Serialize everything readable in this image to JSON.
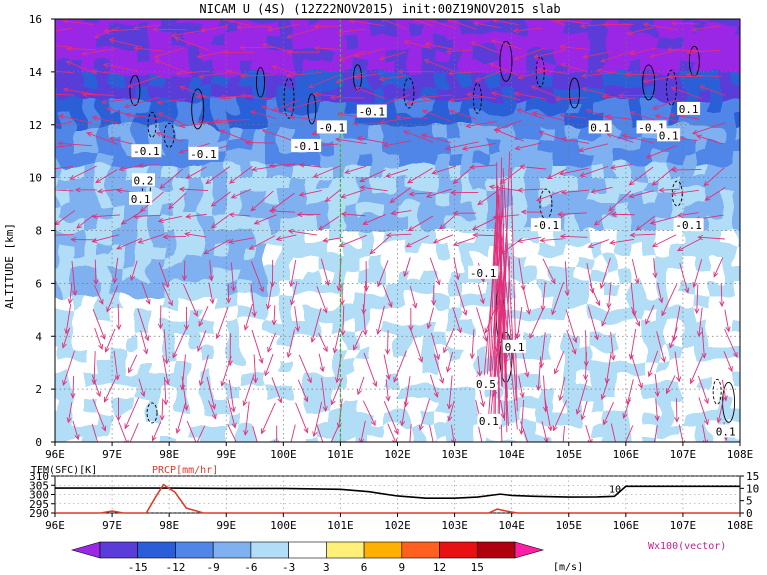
{
  "title": "NICAM U (4S) (12Z22NOV2015) init:00Z19NOV2015 slab",
  "units_label": "[m/s]",
  "vector_label": "Wx100(vector)",
  "colors": {
    "vector": "#e0307a",
    "marker_line": "#33bb33",
    "tem_line": "#000000",
    "prcp_line": "#e03a2a",
    "shades": [
      "#9a28e6",
      "#5a3cd8",
      "#2a5ed8",
      "#4f86e8",
      "#7fb1f0",
      "#b2ddf6",
      "#ffffff",
      "#fff07a",
      "#ffb000",
      "#ff6020",
      "#e81010",
      "#b00010",
      "#ff1fa4"
    ]
  },
  "chart_data": [
    {
      "type": "heatmap",
      "title": "NICAM U (4S) (12Z22NOV2015) init:00Z19NOV2015 slab",
      "xlabel": "",
      "ylabel": "ALTITUDE [km]",
      "x_ticks": [
        "96E",
        "97E",
        "98E",
        "99E",
        "100E",
        "101E",
        "102E",
        "103E",
        "104E",
        "105E",
        "106E",
        "107E",
        "108E"
      ],
      "y_ticks": [
        "0",
        "2",
        "4",
        "6",
        "8",
        "10",
        "12",
        "14",
        "16"
      ],
      "xlim": [
        96,
        108
      ],
      "ylim": [
        0,
        16
      ],
      "marker_longitude": 101,
      "contour_labels": [
        {
          "text": "-0.1",
          "x": 97.6,
          "y": 11.0
        },
        {
          "text": "-0.1",
          "x": 98.6,
          "y": 10.9
        },
        {
          "text": "0.2",
          "x": 97.55,
          "y": 9.9
        },
        {
          "text": "0.1",
          "x": 97.5,
          "y": 9.2
        },
        {
          "text": "-0.1",
          "x": 100.4,
          "y": 11.2
        },
        {
          "text": "-0.1",
          "x": 100.85,
          "y": 11.9
        },
        {
          "text": "-0.1",
          "x": 101.55,
          "y": 12.5
        },
        {
          "text": "-0.1",
          "x": 104.6,
          "y": 8.2
        },
        {
          "text": "0.1",
          "x": 105.55,
          "y": 11.9
        },
        {
          "text": "-0.1",
          "x": 106.45,
          "y": 11.9
        },
        {
          "text": "0.1",
          "x": 106.75,
          "y": 11.6
        },
        {
          "text": "0.1",
          "x": 107.1,
          "y": 12.6
        },
        {
          "text": "-0.1",
          "x": 107.1,
          "y": 8.2
        },
        {
          "text": "-0.1",
          "x": 103.5,
          "y": 6.4
        },
        {
          "text": "0.1",
          "x": 104.05,
          "y": 3.6
        },
        {
          "text": "0.5",
          "x": 103.55,
          "y": 2.2
        },
        {
          "text": "0.1",
          "x": 103.6,
          "y": 0.8
        },
        {
          "text": "0.1",
          "x": 107.75,
          "y": 0.4
        }
      ],
      "colorbar": {
        "levels": [
          "-15",
          "-12",
          "-9",
          "-6",
          "-3",
          "3",
          "6",
          "9",
          "12",
          "15"
        ],
        "units": "[m/s]"
      }
    },
    {
      "type": "line",
      "xlabel": "",
      "x_ticks": [
        "96E",
        "97E",
        "98E",
        "99E",
        "100E",
        "101E",
        "102E",
        "103E",
        "104E",
        "105E",
        "106E",
        "107E",
        "108E"
      ],
      "xlim": [
        96,
        108
      ],
      "left_axis": {
        "ticks": [
          "290",
          "295",
          "300",
          "305",
          "310"
        ],
        "ylim": [
          290,
          310
        ]
      },
      "right_axis": {
        "ticks": [
          "0",
          "5",
          "10",
          "15"
        ],
        "ylim": [
          0,
          15
        ]
      },
      "series": [
        {
          "name": "TEM(SFC)[K]",
          "x": [
            96,
            97,
            98,
            99,
            100,
            101,
            101.5,
            102,
            102.5,
            103,
            103.4,
            103.8,
            104.0,
            104.4,
            105,
            105.5,
            105.8,
            106,
            107,
            108
          ],
          "y": [
            303.5,
            303.5,
            303.5,
            303.3,
            303.3,
            302.8,
            301.5,
            299.2,
            298.0,
            298.0,
            298.6,
            300.2,
            299.5,
            299.0,
            298.6,
            298.7,
            299.0,
            304.4,
            304.4,
            304.4
          ]
        },
        {
          "name": "PRCP[mm/hr]",
          "x": [
            96,
            96.8,
            97.0,
            97.2,
            97.6,
            97.75,
            97.9,
            98.1,
            98.3,
            98.6,
            99,
            103.6,
            103.75,
            103.9,
            104.1,
            108
          ],
          "y": [
            0,
            0,
            0.8,
            0,
            0,
            6.0,
            11.5,
            8.5,
            2.0,
            0,
            0,
            0,
            1.6,
            0.8,
            0,
            0
          ]
        }
      ],
      "annotations": [
        {
          "text": "10",
          "x": 105.95,
          "y": 10
        }
      ]
    }
  ]
}
